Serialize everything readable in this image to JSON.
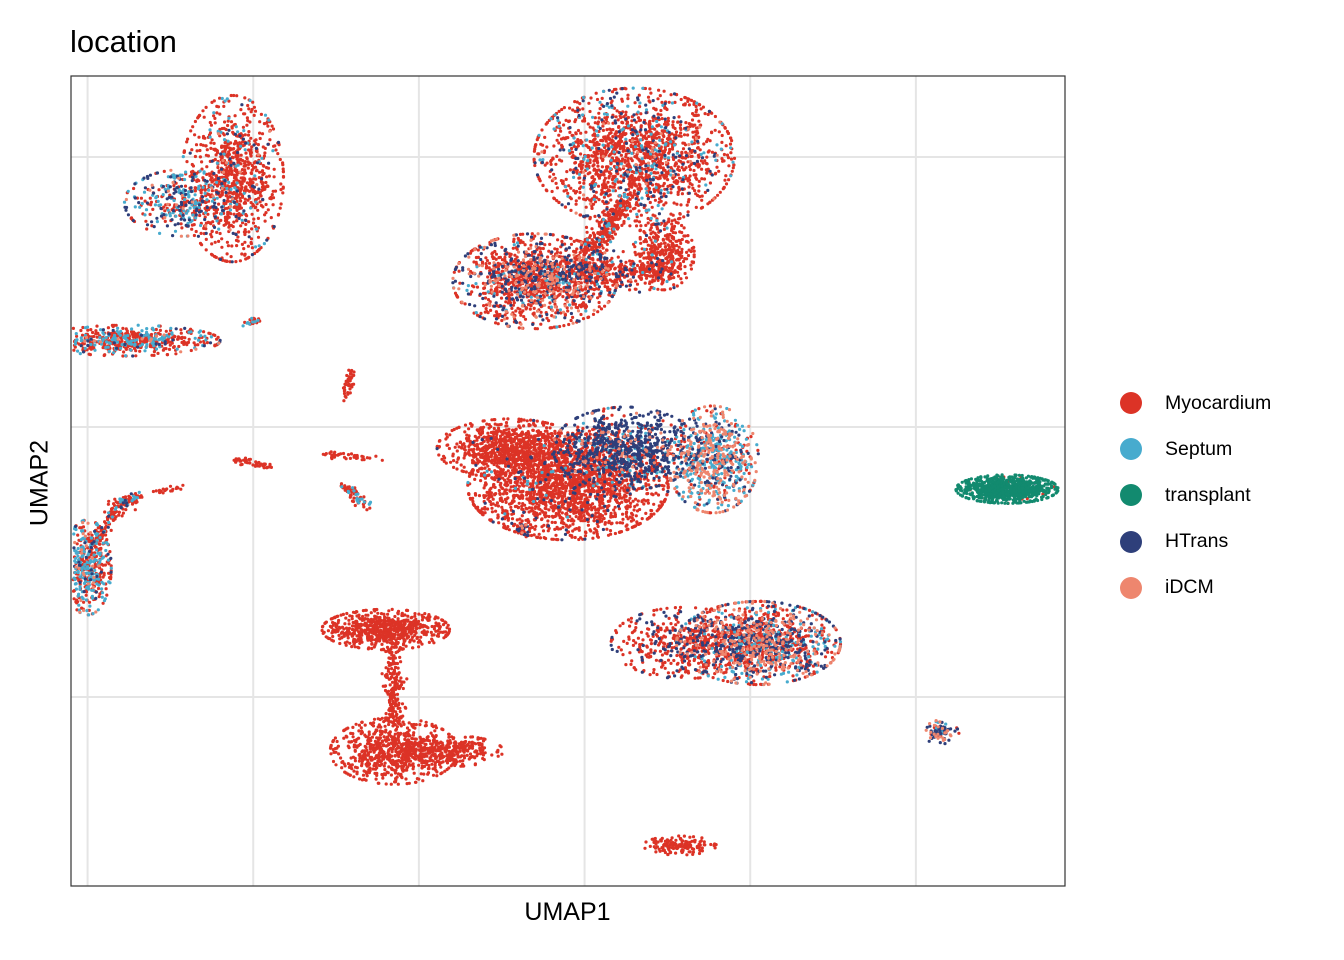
{
  "chart_data": {
    "type": "scatter",
    "title": "location",
    "xlabel": "UMAP1",
    "ylabel": "UMAP2",
    "xlim": [
      -7.2,
      4.8
    ],
    "ylim": [
      -8.5,
      6.5
    ],
    "x_gridlines": [
      -7,
      -5,
      -3,
      -1,
      1,
      3
    ],
    "y_gridlines": [
      -5,
      0,
      5
    ],
    "tick_labels_visible": false,
    "grid": true,
    "legend_position": "right",
    "legend": [
      {
        "name": "Myocardium",
        "color": "#DC3326"
      },
      {
        "name": "Septum",
        "color": "#47ABCE"
      },
      {
        "name": "transplant",
        "color": "#128A6F"
      },
      {
        "name": "HTrans",
        "color": "#2E3F7A"
      },
      {
        "name": "iDCM",
        "color": "#EE866E"
      }
    ],
    "clusters": [
      {
        "center": [
          -5.25,
          4.6
        ],
        "spread": [
          0.28,
          0.7
        ],
        "n": 900,
        "mix": [
          0.88,
          0.05,
          0,
          0.06,
          0.01
        ]
      },
      {
        "center": [
          -5.85,
          4.15
        ],
        "spread": [
          0.32,
          0.28
        ],
        "n": 350,
        "mix": [
          0.35,
          0.35,
          0,
          0.25,
          0.05
        ]
      },
      {
        "center": [
          -6.5,
          1.6
        ],
        "spread": [
          0.5,
          0.13
        ],
        "n": 600,
        "mix": [
          0.65,
          0.25,
          0,
          0.07,
          0.03
        ]
      },
      {
        "center": [
          -0.4,
          5.0
        ],
        "spread": [
          0.55,
          0.58
        ],
        "n": 1700,
        "mix": [
          0.8,
          0.08,
          0,
          0.1,
          0.02
        ]
      },
      {
        "center": [
          -0.05,
          3.2
        ],
        "spread": [
          0.17,
          0.3
        ],
        "n": 350,
        "mix": [
          0.97,
          0.01,
          0,
          0.02,
          0
        ]
      },
      {
        "center": [
          -1.6,
          2.7
        ],
        "spread": [
          0.45,
          0.4
        ],
        "n": 1200,
        "mix": [
          0.6,
          0.05,
          0,
          0.2,
          0.15
        ]
      },
      {
        "center": [
          -1.0,
          2.85
        ],
        "spread": [
          0.5,
          0.2
        ],
        "n": 400,
        "mix": [
          0.7,
          0.02,
          0,
          0.25,
          0.03
        ]
      },
      {
        "center": [
          -1.2,
          -1.1
        ],
        "spread": [
          0.55,
          0.45
        ],
        "n": 2000,
        "mix": [
          0.95,
          0.01,
          0,
          0.04,
          0
        ]
      },
      {
        "center": [
          -1.9,
          -0.4
        ],
        "spread": [
          0.4,
          0.25
        ],
        "n": 800,
        "mix": [
          0.99,
          0,
          0,
          0.01,
          0
        ]
      },
      {
        "center": [
          -0.5,
          -0.4
        ],
        "spread": [
          0.4,
          0.35
        ],
        "n": 900,
        "mix": [
          0.18,
          0.07,
          0,
          0.7,
          0.05
        ]
      },
      {
        "center": [
          0.55,
          -0.6
        ],
        "spread": [
          0.25,
          0.45
        ],
        "n": 700,
        "mix": [
          0.15,
          0.35,
          0,
          0.15,
          0.35
        ]
      },
      {
        "center": [
          1.1,
          -4.0
        ],
        "spread": [
          0.45,
          0.35
        ],
        "n": 1300,
        "mix": [
          0.4,
          0.15,
          0,
          0.25,
          0.2
        ]
      },
      {
        "center": [
          0.2,
          -4.0
        ],
        "spread": [
          0.4,
          0.3
        ],
        "n": 450,
        "mix": [
          0.75,
          0,
          0,
          0.25,
          0
        ]
      },
      {
        "center": [
          -3.4,
          -3.75
        ],
        "spread": [
          0.35,
          0.17
        ],
        "n": 700,
        "mix": [
          1,
          0,
          0,
          0,
          0
        ]
      },
      {
        "center": [
          -3.3,
          -6.0
        ],
        "spread": [
          0.35,
          0.28
        ],
        "n": 700,
        "mix": [
          1,
          0,
          0,
          0,
          0
        ]
      },
      {
        "center": [
          -2.6,
          -6.0
        ],
        "spread": [
          0.28,
          0.13
        ],
        "n": 250,
        "mix": [
          1,
          0,
          0,
          0,
          0
        ]
      },
      {
        "center": [
          4.1,
          -1.15
        ],
        "spread": [
          0.28,
          0.12
        ],
        "n": 900,
        "mix": [
          0.03,
          0,
          0.95,
          0.01,
          0.01
        ]
      },
      {
        "center": [
          -7.0,
          -2.6
        ],
        "spread": [
          0.13,
          0.4
        ],
        "n": 450,
        "mix": [
          0.5,
          0.4,
          0,
          0.06,
          0.04
        ]
      },
      {
        "center": [
          0.15,
          -7.75
        ],
        "spread": [
          0.2,
          0.08
        ],
        "n": 150,
        "mix": [
          1,
          0,
          0,
          0,
          0
        ]
      },
      {
        "center": [
          3.3,
          -5.65
        ],
        "spread": [
          0.1,
          0.1
        ],
        "n": 80,
        "mix": [
          0.1,
          0.1,
          0,
          0.5,
          0.3
        ]
      }
    ],
    "paths": [
      {
        "points": [
          [
            -3.3,
            -4.0
          ],
          [
            -3.3,
            -5.5
          ]
        ],
        "spread": 0.06,
        "n": 200,
        "mix": [
          1,
          0,
          0,
          0,
          0
        ]
      },
      {
        "points": [
          [
            -6.95,
            -2.2
          ],
          [
            -6.6,
            -1.4
          ],
          [
            -6.4,
            -1.3
          ]
        ],
        "spread": 0.05,
        "n": 180,
        "mix": [
          0.8,
          0.15,
          0,
          0.05,
          0
        ]
      },
      {
        "points": [
          [
            -0.95,
            3.2
          ],
          [
            -0.5,
            4.2
          ]
        ],
        "spread": 0.08,
        "n": 250,
        "mix": [
          0.9,
          0.05,
          0,
          0.05,
          0
        ]
      },
      {
        "points": [
          [
            -1.1,
            3.0
          ],
          [
            0.0,
            2.85
          ]
        ],
        "spread": 0.06,
        "n": 150,
        "mix": [
          0.95,
          0,
          0,
          0.05,
          0
        ]
      },
      {
        "points": [
          [
            -5.2,
            -0.6
          ],
          [
            -4.8,
            -0.75
          ]
        ],
        "spread": 0.03,
        "n": 50,
        "mix": [
          1,
          0,
          0,
          0,
          0
        ]
      },
      {
        "points": [
          [
            -4.1,
            -0.5
          ],
          [
            -3.5,
            -0.6
          ]
        ],
        "spread": 0.03,
        "n": 40,
        "mix": [
          1,
          0,
          0,
          0,
          0
        ]
      },
      {
        "points": [
          [
            -3.9,
            0.45
          ],
          [
            -3.8,
            1.05
          ]
        ],
        "spread": 0.03,
        "n": 40,
        "mix": [
          1,
          0,
          0,
          0,
          0
        ]
      },
      {
        "points": [
          [
            -3.9,
            -1.1
          ],
          [
            -3.6,
            -1.5
          ]
        ],
        "spread": 0.04,
        "n": 60,
        "mix": [
          0.8,
          0.2,
          0,
          0,
          0
        ]
      },
      {
        "points": [
          [
            -5.1,
            1.9
          ],
          [
            -4.9,
            2.0
          ]
        ],
        "spread": 0.03,
        "n": 25,
        "mix": [
          0.6,
          0.4,
          0,
          0,
          0
        ]
      },
      {
        "points": [
          [
            -5.7,
            4.65
          ],
          [
            -6.0,
            4.65
          ]
        ],
        "spread": 0.02,
        "n": 20,
        "mix": [
          0.4,
          0.6,
          0,
          0,
          0
        ]
      },
      {
        "points": [
          [
            -1.8,
            -1.8
          ],
          [
            -1.7,
            -2.0
          ]
        ],
        "spread": 0.04,
        "n": 40,
        "mix": [
          0.7,
          0,
          0,
          0.2,
          0.1
        ]
      },
      {
        "points": [
          [
            -6.2,
            -1.2
          ],
          [
            -5.8,
            -1.1
          ]
        ],
        "spread": 0.03,
        "n": 20,
        "mix": [
          1,
          0,
          0,
          0,
          0
        ]
      },
      {
        "points": [
          [
            -1.35,
            2.75
          ],
          [
            -1.25,
            2.75
          ]
        ],
        "spread": 0.03,
        "n": 15,
        "mix": [
          0.5,
          0.5,
          0,
          0,
          0
        ]
      }
    ]
  }
}
